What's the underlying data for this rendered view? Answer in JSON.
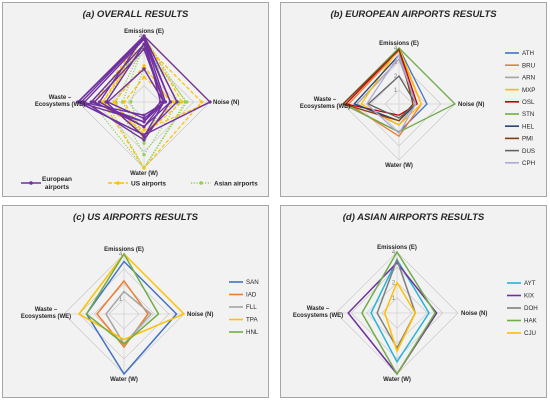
{
  "chart_data": [
    {
      "type": "radar",
      "title": "(a) OVERALL RESULTS",
      "axes": [
        "Emissions (E)",
        "Noise (N)",
        "Water (W)",
        "Waste – Ecosystems (WE)"
      ],
      "rings": [
        "1",
        "2",
        "3",
        "4"
      ],
      "range": [
        0,
        4
      ],
      "legend": "bottom",
      "groups": [
        {
          "name": "European airports",
          "color": "#7030a0",
          "dash": "solid"
        },
        {
          "name": "US airports",
          "color": "#ffc000",
          "dash": "dash"
        },
        {
          "name": "Asian airports",
          "color": "#92d050",
          "dash": "dot"
        }
      ],
      "series": [
        {
          "name": "ATH",
          "group": "European airports",
          "values": [
            4,
            2,
            2,
            4
          ]
        },
        {
          "name": "BRU",
          "group": "European airports",
          "values": [
            3.8,
            1.6,
            2.3,
            3.6
          ]
        },
        {
          "name": "ARN",
          "group": "European airports",
          "values": [
            3.2,
            1.2,
            1.5,
            3.0
          ]
        },
        {
          "name": "MXP",
          "group": "European airports",
          "values": [
            4,
            1.6,
            1.5,
            2.7
          ]
        },
        {
          "name": "OSL",
          "group": "European airports",
          "values": [
            3.9,
            1.3,
            0.8,
            3.8
          ]
        },
        {
          "name": "STN",
          "group": "European airports",
          "values": [
            4,
            4,
            2,
            4
          ]
        },
        {
          "name": "HEL",
          "group": "European airports",
          "values": [
            3.5,
            1.2,
            1.2,
            3.2
          ]
        },
        {
          "name": "PMI",
          "group": "European airports",
          "values": [
            3.9,
            1.0,
            1.2,
            4
          ]
        },
        {
          "name": "DUS",
          "group": "European airports",
          "values": [
            2.0,
            1.2,
            1.0,
            2.2
          ]
        },
        {
          "name": "CPH",
          "group": "European airports",
          "values": [
            3.5,
            1.2,
            2.1,
            2.3
          ]
        },
        {
          "name": "SAN",
          "group": "US airports",
          "values": [
            3.5,
            3.5,
            4,
            2.5
          ]
        },
        {
          "name": "IAD",
          "group": "US airports",
          "values": [
            2.2,
            1.6,
            2.2,
            1.8
          ]
        },
        {
          "name": "FLL",
          "group": "US airports",
          "values": [
            1.5,
            1.8,
            2.0,
            1.2
          ]
        },
        {
          "name": "TPA",
          "group": "US airports",
          "values": [
            4,
            4,
            1.7,
            3.0
          ]
        },
        {
          "name": "HNL",
          "group": "US airports",
          "values": [
            4,
            2.3,
            2.0,
            2.5
          ]
        },
        {
          "name": "AYT",
          "group": "Asian airports",
          "values": [
            3.5,
            2.1,
            3.2,
            1.7
          ]
        },
        {
          "name": "KIX",
          "group": "Asian airports",
          "values": [
            3.3,
            2.6,
            4,
            3.2
          ]
        },
        {
          "name": "DOH",
          "group": "Asian airports",
          "values": [
            3.5,
            1.2,
            2.3,
            1.3
          ]
        },
        {
          "name": "HAK",
          "group": "Asian airports",
          "values": [
            4,
            2.5,
            4,
            2.3
          ]
        },
        {
          "name": "CJU",
          "group": "Asian airports",
          "values": [
            2.0,
            1.2,
            2.5,
            0.8
          ]
        }
      ]
    },
    {
      "type": "radar",
      "title": "(b) EUROPEAN AIRPORTS RESULTS",
      "axes": [
        "Emissions (E)",
        "Noise (N)",
        "Water (W)",
        "Waste – Ecosystems (WE)"
      ],
      "rings": [
        "1",
        "2",
        "3",
        "4"
      ],
      "range": [
        0,
        4
      ],
      "legend": "right",
      "series": [
        {
          "name": "ATH",
          "color": "#4472c4",
          "values": [
            4,
            2,
            2,
            4
          ]
        },
        {
          "name": "BRU",
          "color": "#ed7d31",
          "values": [
            3.8,
            1.6,
            2.3,
            3.6
          ]
        },
        {
          "name": "ARN",
          "color": "#a5a5a5",
          "values": [
            3.2,
            1.2,
            1.5,
            3.0
          ]
        },
        {
          "name": "MXP",
          "color": "#ffc000",
          "values": [
            4,
            1.6,
            1.5,
            2.7
          ]
        },
        {
          "name": "OSL",
          "color": "#c00000",
          "values": [
            3.9,
            1.3,
            0.8,
            3.8
          ]
        },
        {
          "name": "STN",
          "color": "#70ad47",
          "values": [
            4,
            4,
            2,
            4
          ]
        },
        {
          "name": "HEL",
          "color": "#264478",
          "values": [
            3.5,
            1.2,
            1.2,
            3.2
          ]
        },
        {
          "name": "PMI",
          "color": "#843c0c",
          "values": [
            3.9,
            1.0,
            1.2,
            4
          ]
        },
        {
          "name": "DUS",
          "color": "#636363",
          "values": [
            2.0,
            1.2,
            1.0,
            2.2
          ]
        },
        {
          "name": "CPH",
          "color": "#b4a7d6",
          "values": [
            3.5,
            1.2,
            2.1,
            2.3
          ]
        }
      ]
    },
    {
      "type": "radar",
      "title": "(c) US AIRPORTS RESULTS",
      "axes": [
        "Emissions (E)",
        "Noise (N)",
        "Water (W)",
        "Waste – Ecosystems (WE)"
      ],
      "rings": [
        "1",
        "2",
        "3",
        "4"
      ],
      "range": [
        0,
        4
      ],
      "legend": "right",
      "series": [
        {
          "name": "SAN",
          "color": "#4472c4",
          "values": [
            3.5,
            3.5,
            4,
            2.5
          ]
        },
        {
          "name": "IAD",
          "color": "#ed7d31",
          "values": [
            2.2,
            1.6,
            2.2,
            1.8
          ]
        },
        {
          "name": "FLL",
          "color": "#a5a5a5",
          "values": [
            1.5,
            1.8,
            2.0,
            1.2
          ]
        },
        {
          "name": "TPA",
          "color": "#ffc000",
          "values": [
            4,
            4,
            1.7,
            3.0
          ]
        },
        {
          "name": "HNL",
          "color": "#70ad47",
          "values": [
            4,
            2.3,
            2.0,
            2.5
          ]
        }
      ]
    },
    {
      "type": "radar",
      "title": "(d) ASIAN AIRPORTS RESULTS",
      "axes": [
        "Emissions (E)",
        "Noise (N)",
        "Water (W)",
        "Waste – Ecosystems (WE)"
      ],
      "rings": [
        "1",
        "2",
        "3",
        "4"
      ],
      "range": [
        0,
        4
      ],
      "legend": "right",
      "series": [
        {
          "name": "AYT",
          "color": "#26b4d8",
          "values": [
            3.5,
            2.1,
            3.2,
            1.7
          ]
        },
        {
          "name": "KIX",
          "color": "#7030a0",
          "values": [
            3.3,
            2.6,
            4,
            3.2
          ]
        },
        {
          "name": "DOH",
          "color": "#7f7f7f",
          "values": [
            3.5,
            1.2,
            2.3,
            1.3
          ]
        },
        {
          "name": "HAK",
          "color": "#70ad47",
          "values": [
            4,
            2.5,
            4,
            2.3
          ]
        },
        {
          "name": "CJU",
          "color": "#ffc000",
          "values": [
            2.0,
            1.2,
            2.5,
            0.8
          ]
        }
      ]
    }
  ],
  "panel_a_legend": {
    "european": "European airports",
    "us": "US airports",
    "asian": "Asian airports"
  }
}
